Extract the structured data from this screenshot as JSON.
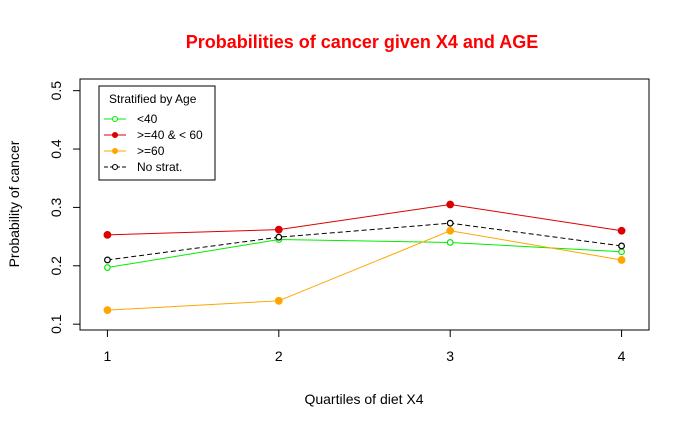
{
  "chart_data": {
    "type": "line",
    "title": "Probabilities of cancer given X4 and AGE",
    "xlabel": "Quartiles of diet X4",
    "ylabel": "Probability of cancer",
    "x": [
      1,
      2,
      3,
      4
    ],
    "x_ticks": [
      "1",
      "2",
      "3",
      "4"
    ],
    "xlim": [
      0.84,
      4.16
    ],
    "ylim": [
      0.09,
      0.52
    ],
    "y_ticks": [
      "0.1",
      "0.2",
      "0.3",
      "0.4",
      "0.5"
    ],
    "grid": false,
    "legend": {
      "title": "Stratified by Age",
      "position": "top-left"
    },
    "series": [
      {
        "name": "<40",
        "color": "#00ee00",
        "marker": "open-circle",
        "line": "solid",
        "values": [
          0.197,
          0.245,
          0.24,
          0.224
        ]
      },
      {
        "name": ">=40 & < 60",
        "color": "#dd0000",
        "marker": "filled-circle",
        "line": "solid",
        "values": [
          0.253,
          0.262,
          0.305,
          0.26
        ]
      },
      {
        "name": ">=60",
        "color": "#ffa500",
        "marker": "filled-circle",
        "line": "solid",
        "values": [
          0.124,
          0.14,
          0.26,
          0.21
        ]
      },
      {
        "name": "No strat.",
        "color": "#000000",
        "marker": "open-circle",
        "line": "dashed",
        "values": [
          0.21,
          0.249,
          0.273,
          0.234
        ]
      }
    ]
  }
}
